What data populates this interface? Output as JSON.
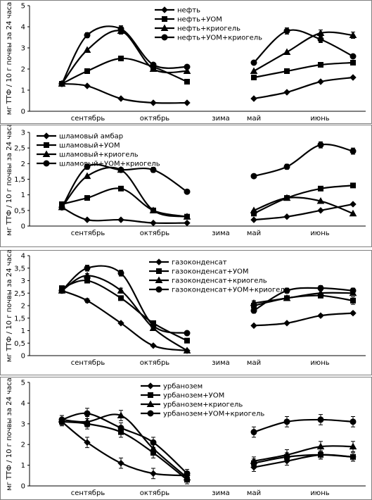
{
  "chart_data": [
    {
      "type": "line",
      "ylabel": "мг ТТФ / 10 г почвы за 24 часа",
      "ylim": [
        0,
        5
      ],
      "yticks": [
        0,
        1,
        2,
        3,
        4,
        5
      ],
      "month_labels": [
        "сентябрь",
        "октябрь",
        "зима",
        "май",
        "июнь"
      ],
      "legend_placement": "top-right",
      "grid": false,
      "series": [
        {
          "name": "нефть",
          "marker": "diamond",
          "segments": [
            {
              "x": [
                0,
                1,
                2,
                3,
                4
              ],
              "y": [
                1.3,
                1.2,
                0.6,
                0.4,
                0.4
              ],
              "err": [
                0,
                0,
                0,
                0,
                0
              ]
            },
            {
              "x": [
                6,
                7,
                8,
                9
              ],
              "y": [
                0.6,
                0.9,
                1.4,
                1.6
              ],
              "err": [
                0,
                0,
                0,
                0
              ]
            }
          ]
        },
        {
          "name": "нефть+УОМ",
          "marker": "square",
          "segments": [
            {
              "x": [
                0,
                1,
                2,
                3,
                4
              ],
              "y": [
                1.3,
                1.9,
                2.5,
                2.1,
                1.4
              ],
              "err": [
                0,
                0,
                0,
                0,
                0
              ]
            },
            {
              "x": [
                6,
                7,
                8,
                9
              ],
              "y": [
                1.6,
                1.9,
                2.2,
                2.3
              ],
              "err": [
                0,
                0,
                0,
                0
              ]
            }
          ]
        },
        {
          "name": "нефть+криогель",
          "marker": "triangle",
          "segments": [
            {
              "x": [
                0,
                1,
                2,
                3,
                4
              ],
              "y": [
                1.3,
                2.9,
                3.8,
                2.0,
                1.9
              ],
              "err": [
                0,
                0,
                0.15,
                0,
                0
              ]
            },
            {
              "x": [
                6,
                7,
                8,
                9
              ],
              "y": [
                1.9,
                2.8,
                3.7,
                3.6
              ],
              "err": [
                0,
                0,
                0.15,
                0.15
              ]
            }
          ]
        },
        {
          "name": "нефть+УОМ+криогель",
          "marker": "circle",
          "segments": [
            {
              "x": [
                0,
                1,
                2,
                3,
                4
              ],
              "y": [
                1.3,
                3.6,
                3.9,
                2.2,
                2.1
              ],
              "err": [
                0,
                0.12,
                0.15,
                0,
                0
              ]
            },
            {
              "x": [
                6,
                7,
                8,
                9
              ],
              "y": [
                2.3,
                3.8,
                3.4,
                2.6
              ],
              "err": [
                0,
                0.15,
                0.15,
                0
              ]
            }
          ]
        }
      ]
    },
    {
      "type": "line",
      "ylabel": "мг ТТФ / 10 г почвы за 24 часа",
      "ylim": [
        0,
        3
      ],
      "yticks": [
        0,
        0.5,
        1,
        1.5,
        2,
        2.5,
        3
      ],
      "ytick_labels": [
        "0",
        "0,5",
        "1",
        "1,5",
        "2",
        "2,5",
        "3"
      ],
      "month_labels": [
        "сентябрь",
        "октябрь",
        "зима",
        "май",
        "июнь"
      ],
      "legend_placement": "top-left",
      "grid": false,
      "series": [
        {
          "name": "шламовый амбар",
          "marker": "diamond",
          "segments": [
            {
              "x": [
                0,
                1,
                2,
                3,
                4
              ],
              "y": [
                0.6,
                0.2,
                0.2,
                0.1,
                0.1
              ],
              "err": [
                0,
                0,
                0,
                0,
                0
              ]
            },
            {
              "x": [
                6,
                7,
                8,
                9
              ],
              "y": [
                0.2,
                0.3,
                0.5,
                0.7
              ],
              "err": [
                0,
                0,
                0,
                0
              ]
            }
          ]
        },
        {
          "name": "шламовый+УОМ",
          "marker": "square",
          "segments": [
            {
              "x": [
                0,
                1,
                2,
                3,
                4
              ],
              "y": [
                0.7,
                0.9,
                1.2,
                0.5,
                0.3
              ],
              "err": [
                0,
                0,
                0,
                0,
                0
              ]
            },
            {
              "x": [
                6,
                7,
                8,
                9
              ],
              "y": [
                0.4,
                0.9,
                1.2,
                1.3
              ],
              "err": [
                0,
                0,
                0,
                0
              ]
            }
          ]
        },
        {
          "name": "шламовый+криогель",
          "marker": "triangle",
          "segments": [
            {
              "x": [
                0,
                1,
                2,
                3,
                4
              ],
              "y": [
                0.6,
                1.6,
                1.8,
                0.5,
                0.3
              ],
              "err": [
                0,
                0,
                0,
                0,
                0
              ]
            },
            {
              "x": [
                6,
                7,
                8,
                9
              ],
              "y": [
                0.5,
                0.9,
                0.8,
                0.4
              ],
              "err": [
                0,
                0,
                0,
                0
              ]
            }
          ]
        },
        {
          "name": "шламовый+УОМ+криогель",
          "marker": "circle",
          "segments": [
            {
              "x": [
                0,
                1,
                2,
                3,
                4
              ],
              "y": [
                0.6,
                1.9,
                1.8,
                1.8,
                1.1
              ],
              "err": [
                0,
                0.08,
                0,
                0.08,
                0
              ]
            },
            {
              "x": [
                6,
                7,
                8,
                9
              ],
              "y": [
                1.6,
                1.9,
                2.6,
                2.4
              ],
              "err": [
                0,
                0.08,
                0.1,
                0.1
              ]
            }
          ]
        }
      ]
    },
    {
      "type": "line",
      "ylabel": "мг ТТФ / 10 г почвы за 24 часа",
      "ylim": [
        0,
        4
      ],
      "yticks": [
        0,
        0.5,
        1,
        1.5,
        2,
        2.5,
        3,
        3.5,
        4
      ],
      "ytick_labels": [
        "0",
        "0,5",
        "1",
        "1,5",
        "2",
        "2,5",
        "3",
        "3,5",
        "4"
      ],
      "month_labels": [
        "сентябрь",
        "октябрь",
        "зима",
        "май",
        "июнь"
      ],
      "legend_placement": "top-right",
      "grid": false,
      "series": [
        {
          "name": "газоконденсат",
          "marker": "diamond",
          "segments": [
            {
              "x": [
                0,
                1,
                2,
                3,
                4
              ],
              "y": [
                2.6,
                2.2,
                1.3,
                0.4,
                0.2
              ],
              "err": [
                0,
                0.08,
                0,
                0,
                0
              ]
            },
            {
              "x": [
                6,
                7,
                8,
                9
              ],
              "y": [
                1.2,
                1.3,
                1.6,
                1.7
              ],
              "err": [
                0,
                0,
                0.05,
                0.05
              ]
            }
          ]
        },
        {
          "name": "газоконденсат+УОМ",
          "marker": "square",
          "segments": [
            {
              "x": [
                0,
                1,
                2,
                3,
                4
              ],
              "y": [
                2.7,
                3.0,
                2.3,
                1.3,
                0.6
              ],
              "err": [
                0,
                0,
                0,
                0,
                0
              ]
            },
            {
              "x": [
                6,
                7,
                8,
                9
              ],
              "y": [
                2.0,
                2.3,
                2.4,
                2.2
              ],
              "err": [
                0.15,
                0,
                0,
                0.15
              ]
            }
          ]
        },
        {
          "name": "газоконденсат+криогель",
          "marker": "triangle",
          "segments": [
            {
              "x": [
                0,
                1,
                2,
                3,
                4
              ],
              "y": [
                2.6,
                3.2,
                2.6,
                1.1,
                0.2
              ],
              "err": [
                0,
                0.08,
                0.1,
                0,
                0
              ]
            },
            {
              "x": [
                6,
                7,
                8,
                9
              ],
              "y": [
                2.1,
                2.3,
                2.5,
                2.5
              ],
              "err": [
                0.1,
                0,
                0,
                0
              ]
            }
          ]
        },
        {
          "name": "газоконденсат+УОМ+криогель",
          "marker": "circle",
          "segments": [
            {
              "x": [
                0,
                1,
                2,
                3,
                4
              ],
              "y": [
                2.6,
                3.5,
                3.3,
                1.2,
                0.9
              ],
              "err": [
                0.1,
                0.12,
                0.12,
                0,
                0
              ]
            },
            {
              "x": [
                6,
                7,
                8,
                9
              ],
              "y": [
                1.8,
                2.6,
                2.7,
                2.6
              ],
              "err": [
                0.1,
                0.1,
                0.1,
                0.1
              ]
            }
          ]
        }
      ]
    },
    {
      "type": "line",
      "ylabel": "мг ТТФ / 10 г почвы за 24 часа",
      "ylim": [
        0,
        5
      ],
      "yticks": [
        0,
        1,
        2,
        3,
        4,
        5
      ],
      "month_labels": [
        "сентябрь",
        "октябрь",
        "зима",
        "май",
        "июнь"
      ],
      "legend_placement": "top-center",
      "grid": false,
      "series": [
        {
          "name": "урбанозем",
          "marker": "diamond",
          "segments": [
            {
              "x": [
                0,
                1,
                2,
                3,
                4
              ],
              "y": [
                3.1,
                2.1,
                1.1,
                0.6,
                0.5
              ],
              "err": [
                0.15,
                0.25,
                0.25,
                0.25,
                0.2
              ]
            },
            {
              "x": [
                6,
                7,
                8,
                9
              ],
              "y": [
                0.9,
                1.2,
                1.5,
                1.4
              ],
              "err": [
                0.2,
                0.2,
                0.2,
                0.2
              ]
            }
          ]
        },
        {
          "name": "урбанозем+УОМ",
          "marker": "square",
          "segments": [
            {
              "x": [
                0,
                1,
                2,
                3,
                4
              ],
              "y": [
                3.1,
                3.0,
                2.6,
                1.6,
                0.3
              ],
              "err": [
                0.2,
                0.25,
                0.25,
                0.25,
                0.2
              ]
            },
            {
              "x": [
                6,
                7,
                8,
                9
              ],
              "y": [
                1.1,
                1.4,
                1.5,
                1.4
              ],
              "err": [
                0.2,
                0.2,
                0.2,
                0.2
              ]
            }
          ]
        },
        {
          "name": "урбанозем+криогель",
          "marker": "triangle",
          "segments": [
            {
              "x": [
                0,
                1,
                2,
                3,
                4
              ],
              "y": [
                3.2,
                3.1,
                3.4,
                1.8,
                0.4
              ],
              "err": [
                0.2,
                0.25,
                0.25,
                0.25,
                0.2
              ]
            },
            {
              "x": [
                6,
                7,
                8,
                9
              ],
              "y": [
                1.2,
                1.5,
                1.9,
                1.9
              ],
              "err": [
                0.2,
                0.25,
                0.25,
                0.25
              ]
            }
          ]
        },
        {
          "name": "урбанозем+УОМ+криогель",
          "marker": "circle",
          "segments": [
            {
              "x": [
                0,
                1,
                2,
                3,
                4
              ],
              "y": [
                3.2,
                3.5,
                2.8,
                2.1,
                0.6
              ],
              "err": [
                0.2,
                0.25,
                0.25,
                0.25,
                0.2
              ]
            },
            {
              "x": [
                6,
                7,
                8,
                9
              ],
              "y": [
                2.6,
                3.1,
                3.2,
                3.1
              ],
              "err": [
                0.25,
                0.25,
                0.25,
                0.25
              ]
            }
          ]
        }
      ]
    }
  ]
}
